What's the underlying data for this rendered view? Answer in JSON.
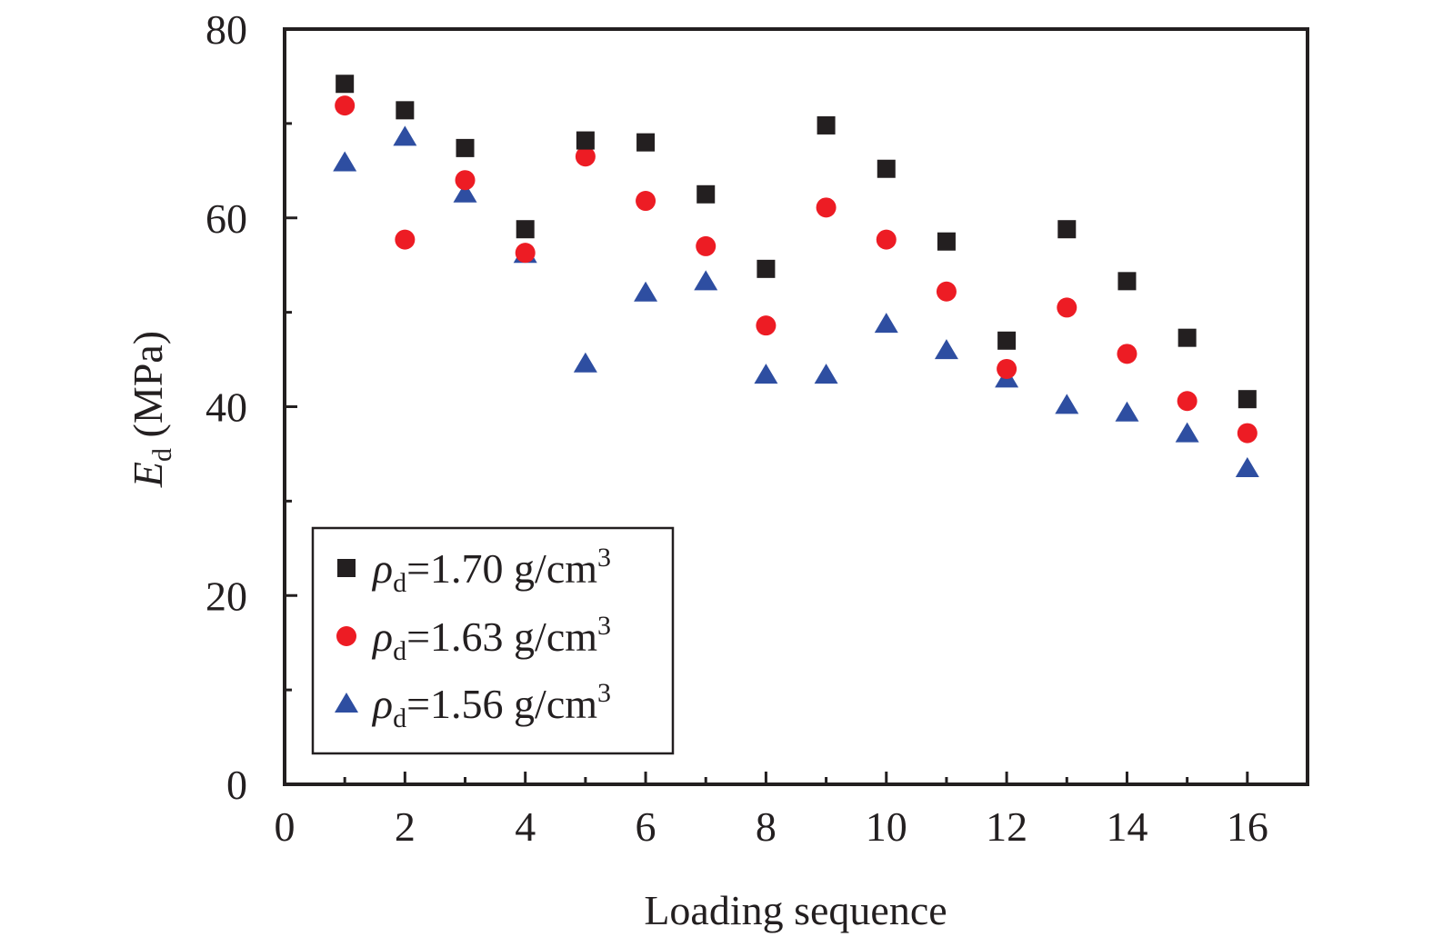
{
  "chart_data": {
    "type": "scatter",
    "xlabel": "Loading sequence",
    "ylabel": {
      "main": "E",
      "sub": "d",
      "unit": " (MPa)"
    },
    "xlim": [
      0,
      17
    ],
    "ylim": [
      0,
      80
    ],
    "x_ticks": [
      0,
      2,
      4,
      6,
      8,
      10,
      12,
      14,
      16
    ],
    "x_minor_ticks": [
      1,
      3,
      5,
      7,
      9,
      11,
      13,
      15
    ],
    "y_ticks": [
      0,
      20,
      40,
      60,
      80
    ],
    "y_minor_ticks": [
      10,
      30,
      50,
      70
    ],
    "grid": false,
    "legend_position": "bottom-left",
    "x": [
      1,
      2,
      3,
      4,
      5,
      6,
      7,
      8,
      9,
      10,
      11,
      12,
      13,
      14,
      15,
      16
    ],
    "series": [
      {
        "name": "ρd=1.70 g/cm3",
        "legend": {
          "symbol": "ρ",
          "sub": "d",
          "text": "=1.70 g/cm",
          "sup": "3"
        },
        "marker": "square",
        "color": "#231f20",
        "values": [
          74.2,
          71.4,
          67.4,
          58.8,
          68.2,
          68.0,
          62.5,
          54.6,
          69.8,
          65.2,
          57.5,
          47.0,
          58.8,
          53.3,
          47.3,
          40.8
        ]
      },
      {
        "name": "ρd=1.63 g/cm3",
        "legend": {
          "symbol": "ρ",
          "sub": "d",
          "text": "=1.63 g/cm",
          "sup": "3"
        },
        "marker": "circle",
        "color": "#ed1c24",
        "values": [
          71.9,
          57.7,
          64.0,
          56.3,
          66.5,
          61.8,
          57.0,
          48.6,
          61.1,
          57.7,
          52.2,
          44.0,
          50.5,
          45.6,
          40.6,
          37.2
        ]
      },
      {
        "name": "ρd=1.56 g/cm3",
        "legend": {
          "symbol": "ρ",
          "sub": "d",
          "text": "=1.56 g/cm",
          "sup": "3"
        },
        "marker": "triangle",
        "color": "#2e4ea1",
        "values": [
          65.9,
          68.6,
          62.6,
          56.2,
          44.6,
          52.1,
          53.3,
          43.4,
          43.4,
          48.8,
          46.0,
          43.0,
          40.2,
          39.4,
          37.2,
          33.5
        ]
      }
    ]
  }
}
